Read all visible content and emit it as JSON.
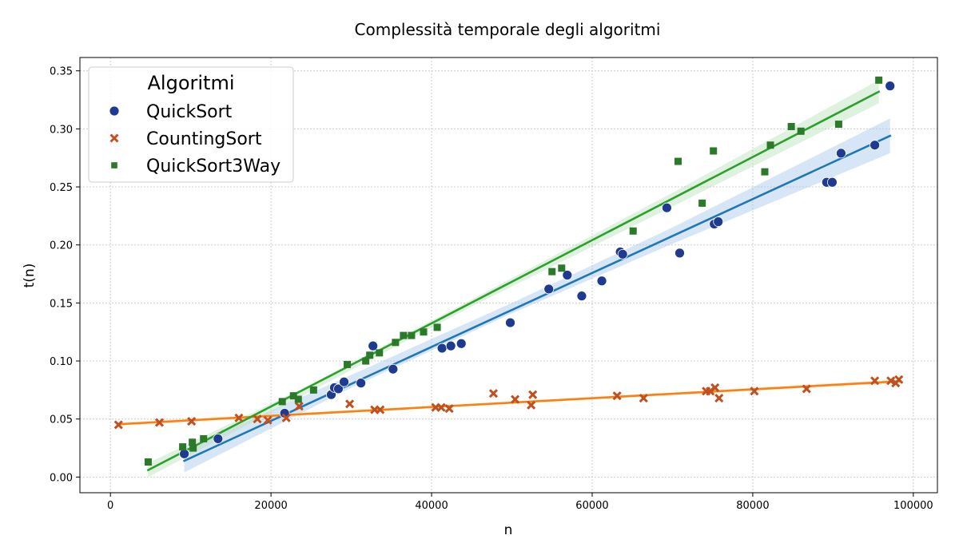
{
  "chart_data": {
    "type": "scatter",
    "title": "Complessità temporale degli algoritmi",
    "xlabel": "n",
    "ylabel": "t(n)",
    "xlim": [
      -3800,
      103000
    ],
    "ylim": [
      -0.0135,
      0.3615
    ],
    "xticks": [
      0,
      20000,
      40000,
      60000,
      80000,
      100000
    ],
    "yticks": [
      0.0,
      0.05,
      0.1,
      0.15,
      0.2,
      0.25,
      0.3,
      0.35
    ],
    "xtick_labels": [
      "0",
      "20000",
      "40000",
      "60000",
      "80000",
      "100000"
    ],
    "ytick_labels": [
      "0.00",
      "0.05",
      "0.10",
      "0.15",
      "0.20",
      "0.25",
      "0.30",
      "0.35"
    ],
    "grid": true,
    "legend": {
      "title": "Algoritmi",
      "position": "top-left"
    },
    "series": [
      {
        "name": "QuickSort",
        "marker": "circle",
        "marker_color": "#1f3a8f",
        "line_color": "#1f77b4",
        "band_color": "#a6c8ea",
        "points": [
          [
            9200,
            0.02
          ],
          [
            13400,
            0.033
          ],
          [
            21700,
            0.055
          ],
          [
            27500,
            0.071
          ],
          [
            27900,
            0.077
          ],
          [
            28400,
            0.076
          ],
          [
            29100,
            0.082
          ],
          [
            31200,
            0.081
          ],
          [
            32700,
            0.113
          ],
          [
            35200,
            0.093
          ],
          [
            41300,
            0.111
          ],
          [
            42400,
            0.113
          ],
          [
            43700,
            0.115
          ],
          [
            49800,
            0.133
          ],
          [
            54600,
            0.162
          ],
          [
            56900,
            0.174
          ],
          [
            58700,
            0.156
          ],
          [
            61200,
            0.169
          ],
          [
            63500,
            0.194
          ],
          [
            63800,
            0.192
          ],
          [
            69300,
            0.232
          ],
          [
            70900,
            0.193
          ],
          [
            75200,
            0.218
          ],
          [
            75700,
            0.22
          ],
          [
            89200,
            0.254
          ],
          [
            89900,
            0.254
          ],
          [
            91000,
            0.279
          ],
          [
            95200,
            0.286
          ],
          [
            97100,
            0.337
          ]
        ],
        "fit": [
          [
            9200,
            0.014
          ],
          [
            97100,
            0.294
          ]
        ],
        "band": {
          "x": [
            9200,
            30000,
            50000,
            70000,
            97100
          ],
          "upper": [
            0.024,
            0.088,
            0.15,
            0.215,
            0.309
          ],
          "lower": [
            0.004,
            0.077,
            0.141,
            0.201,
            0.279
          ]
        }
      },
      {
        "name": "CountingSort",
        "marker": "x",
        "marker_color": "#c0501f",
        "line_color": "#ff7f0e",
        "band_color": "#ffd9b3",
        "points": [
          [
            1000,
            0.045
          ],
          [
            6100,
            0.047
          ],
          [
            10100,
            0.048
          ],
          [
            16000,
            0.051
          ],
          [
            18300,
            0.05
          ],
          [
            19600,
            0.049
          ],
          [
            21900,
            0.051
          ],
          [
            23500,
            0.061
          ],
          [
            29800,
            0.063
          ],
          [
            32900,
            0.058
          ],
          [
            33600,
            0.058
          ],
          [
            40500,
            0.06
          ],
          [
            41200,
            0.06
          ],
          [
            42200,
            0.059
          ],
          [
            47700,
            0.072
          ],
          [
            50400,
            0.067
          ],
          [
            52400,
            0.062
          ],
          [
            52600,
            0.071
          ],
          [
            63100,
            0.07
          ],
          [
            66400,
            0.068
          ],
          [
            74200,
            0.074
          ],
          [
            74700,
            0.074
          ],
          [
            75300,
            0.077
          ],
          [
            75800,
            0.068
          ],
          [
            80200,
            0.074
          ],
          [
            86700,
            0.076
          ],
          [
            95200,
            0.083
          ],
          [
            97200,
            0.083
          ],
          [
            97800,
            0.081
          ],
          [
            98200,
            0.084
          ]
        ],
        "fit": [
          [
            1000,
            0.0455
          ],
          [
            98200,
            0.0825
          ]
        ],
        "band": {
          "x": [
            1000,
            50000,
            98200
          ],
          "upper": [
            0.047,
            0.065,
            0.084
          ],
          "lower": [
            0.044,
            0.063,
            0.081
          ]
        }
      },
      {
        "name": "QuickSort3Way",
        "marker": "square",
        "marker_color": "#2a7a2a",
        "line_color": "#2ca02c",
        "band_color": "#b8e0b8",
        "points": [
          [
            4700,
            0.013
          ],
          [
            9000,
            0.026
          ],
          [
            10200,
            0.03
          ],
          [
            10300,
            0.025
          ],
          [
            11600,
            0.033
          ],
          [
            21400,
            0.065
          ],
          [
            22800,
            0.07
          ],
          [
            23400,
            0.067
          ],
          [
            25300,
            0.075
          ],
          [
            29500,
            0.097
          ],
          [
            31800,
            0.1
          ],
          [
            32300,
            0.105
          ],
          [
            33500,
            0.107
          ],
          [
            35500,
            0.116
          ],
          [
            36500,
            0.122
          ],
          [
            37500,
            0.122
          ],
          [
            39000,
            0.125
          ],
          [
            40700,
            0.129
          ],
          [
            55000,
            0.177
          ],
          [
            56200,
            0.18
          ],
          [
            65100,
            0.212
          ],
          [
            70700,
            0.272
          ],
          [
            73700,
            0.236
          ],
          [
            75100,
            0.281
          ],
          [
            81500,
            0.263
          ],
          [
            82200,
            0.286
          ],
          [
            84800,
            0.302
          ],
          [
            86000,
            0.298
          ],
          [
            90700,
            0.304
          ],
          [
            95700,
            0.342
          ]
        ],
        "fit": [
          [
            4700,
            0.006
          ],
          [
            95700,
            0.332
          ]
        ],
        "band": {
          "x": [
            4700,
            25000,
            45000,
            70000,
            95700
          ],
          "upper": [
            0.012,
            0.08,
            0.153,
            0.245,
            0.342
          ],
          "lower": [
            0.0,
            0.074,
            0.147,
            0.233,
            0.322
          ]
        }
      }
    ]
  }
}
